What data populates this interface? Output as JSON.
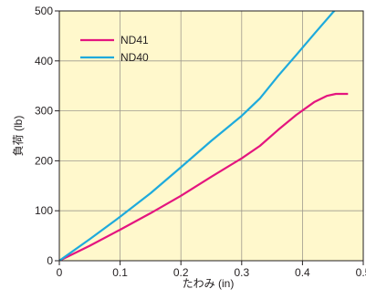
{
  "chart_data": {
    "type": "line",
    "xlabel": "たわみ (in)",
    "ylabel": "負荷 (lb)",
    "xlim": [
      0,
      0.5
    ],
    "ylim": [
      0,
      500
    ],
    "x_ticks": [
      0,
      0.1,
      0.2,
      0.3,
      0.4,
      0.5
    ],
    "x_tick_labels": [
      "0",
      "0.1",
      "0.2",
      "0.3",
      "0.4",
      "0.5"
    ],
    "y_ticks": [
      0,
      100,
      200,
      300,
      400,
      500
    ],
    "y_tick_labels": [
      "0",
      "100",
      "200",
      "300",
      "400",
      "500"
    ],
    "grid": true,
    "legend_position": "top-left",
    "background_color": "#fff8cc",
    "grid_color": "#9e9a8e",
    "series": [
      {
        "name": "ND41",
        "color": "#e4157f",
        "x": [
          0,
          0.05,
          0.1,
          0.15,
          0.2,
          0.25,
          0.3,
          0.33,
          0.36,
          0.39,
          0.42,
          0.44,
          0.455,
          0.475
        ],
        "y": [
          0,
          30,
          62,
          95,
          130,
          168,
          205,
          230,
          262,
          292,
          318,
          330,
          334,
          334
        ]
      },
      {
        "name": "ND40",
        "color": "#1eaadc",
        "x": [
          0,
          0.05,
          0.1,
          0.15,
          0.2,
          0.25,
          0.3,
          0.33,
          0.36,
          0.39,
          0.42,
          0.45,
          0.47
        ],
        "y": [
          0,
          43,
          88,
          135,
          187,
          240,
          290,
          325,
          370,
          412,
          455,
          497,
          520
        ]
      }
    ]
  }
}
